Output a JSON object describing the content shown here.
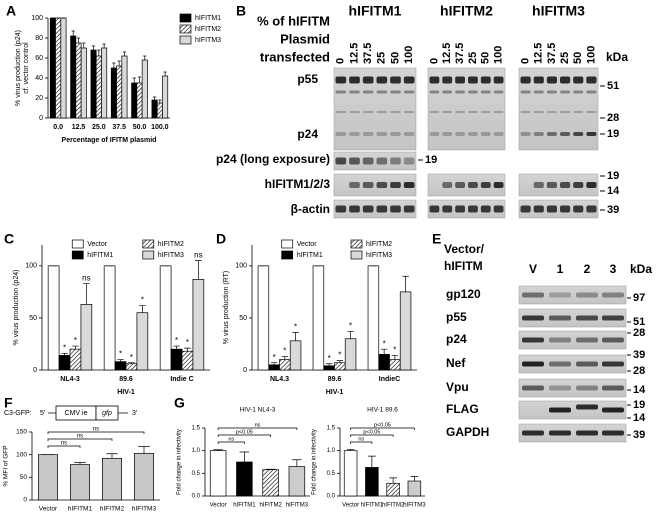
{
  "panel_labels": [
    "A",
    "B",
    "C",
    "D",
    "E",
    "F",
    "G"
  ],
  "chart_data": [
    {
      "type": "bar",
      "ylabel": [
        "% virus production (p24)",
        "cf. vector control"
      ],
      "xlabel": "Percentage of IFITM plasmid",
      "categories": [
        "0.0",
        "12.5",
        "25.0",
        "37.5",
        "50.0",
        "100.0"
      ],
      "ylim": [
        0,
        100
      ],
      "yticks": [
        0,
        20,
        40,
        60,
        80,
        100
      ],
      "legend": "upper right",
      "series": [
        {
          "name": "hIFITM1",
          "color": "#000000",
          "values": [
            100,
            82,
            68,
            50,
            35,
            18
          ],
          "errors": [
            0,
            5,
            4,
            5,
            5,
            3
          ]
        },
        {
          "name": "hIFITM2",
          "color": "#ffffff",
          "hatch": true,
          "values": [
            100,
            75,
            62,
            52,
            35,
            15
          ],
          "errors": [
            0,
            5,
            6,
            5,
            6,
            3
          ]
        },
        {
          "name": "hIFITM3",
          "color": "#d9d9d9",
          "values": [
            100,
            70,
            70,
            62,
            58,
            42
          ],
          "errors": [
            0,
            5,
            4,
            4,
            4,
            4
          ]
        }
      ]
    },
    {
      "type": "bar",
      "ylabel": [
        "% virus production (p24)"
      ],
      "xlabel": "HIV-1",
      "categories": [
        "NL4-3",
        "89.6",
        "Indie C"
      ],
      "ylim": [
        0,
        120
      ],
      "yticks": [
        0,
        50,
        100
      ],
      "legend": "upper center",
      "series": [
        {
          "name": "Vector",
          "color": "#ffffff",
          "values": [
            100,
            100,
            100
          ],
          "errors": [
            0,
            0,
            0
          ]
        },
        {
          "name": "hIFITM1",
          "color": "#000000",
          "values": [
            14,
            8,
            20
          ],
          "errors": [
            2,
            2,
            3
          ],
          "significance": [
            "*",
            "*",
            "*"
          ]
        },
        {
          "name": "hIFITM2",
          "color": "#ffffff",
          "hatch": true,
          "values": [
            20,
            6,
            18
          ],
          "errors": [
            3,
            1,
            3
          ],
          "significance": [
            "*",
            "*",
            "*"
          ]
        },
        {
          "name": "hIFITM3",
          "color": "#d9d9d9",
          "values": [
            63,
            55,
            87
          ],
          "errors": [
            20,
            7,
            18
          ],
          "significance": [
            "ns",
            "*",
            "ns"
          ]
        }
      ]
    },
    {
      "type": "bar",
      "ylabel": [
        "% virus production (RT)"
      ],
      "xlabel": "HIV-1",
      "categories": [
        "NL4.3",
        "89.6",
        "IndieC"
      ],
      "ylim": [
        0,
        120
      ],
      "yticks": [
        0,
        50,
        100
      ],
      "legend": "upper center",
      "series": [
        {
          "name": "Vector",
          "color": "#ffffff",
          "values": [
            100,
            100,
            100
          ],
          "errors": [
            0,
            0,
            0
          ]
        },
        {
          "name": "hIFITM1",
          "color": "#000000",
          "values": [
            5,
            4,
            15
          ],
          "errors": [
            2,
            2,
            5
          ],
          "significance": [
            "*",
            "*",
            "*"
          ]
        },
        {
          "name": "hIFITM2",
          "color": "#ffffff",
          "hatch": true,
          "values": [
            10,
            7,
            10
          ],
          "errors": [
            3,
            2,
            4
          ],
          "significance": [
            "*",
            "*",
            "*"
          ]
        },
        {
          "name": "hIFITM3",
          "color": "#d9d9d9",
          "values": [
            28,
            30,
            75
          ],
          "errors": [
            8,
            7,
            15
          ],
          "significance": [
            "*",
            "*",
            null
          ]
        }
      ]
    },
    {
      "type": "bar",
      "ylabel": [
        "% MFI of GFP"
      ],
      "categories": [
        "Vector",
        "hIFITM1",
        "hIFITM2",
        "hIFITM3"
      ],
      "values": [
        100,
        78,
        92,
        103
      ],
      "errors": [
        0,
        5,
        10,
        15
      ],
      "colors": [
        "#c8c8c8",
        "#c8c8c8",
        "#c8c8c8",
        "#c8c8c8"
      ],
      "ylim": [
        0,
        150
      ],
      "yticks": [
        0,
        50,
        100,
        150
      ],
      "brackets": [
        {
          "label": "ns",
          "from": "Vector",
          "to": "hIFITM1"
        },
        {
          "label": "ns",
          "from": "Vector",
          "to": "hIFITM2"
        },
        {
          "label": "ns",
          "from": "Vector",
          "to": "hIFITM3"
        }
      ]
    },
    {
      "type": "bar",
      "title": "HIV-1 NL4-3",
      "ylabel": [
        "Fold change in infectivity"
      ],
      "categories": [
        "Vector",
        "hIFITM1",
        "hIFITM2",
        "hIFITM3"
      ],
      "values": [
        1.0,
        0.75,
        0.58,
        0.65
      ],
      "errors": [
        0.02,
        0.22,
        0.01,
        0.15
      ],
      "colors": [
        "#ffffff",
        "#000000",
        "#ffffff",
        "#cccccc"
      ],
      "hatched": [
        false,
        false,
        true,
        false
      ],
      "ylim": [
        0,
        1.5
      ],
      "yticks": [
        {
          "value": 0,
          "label": "0.0"
        },
        0.5,
        {
          "value": 1,
          "label": "1.0"
        },
        1.5
      ],
      "brackets": [
        {
          "label": "ns",
          "from": "Vector",
          "to": "hIFITM1"
        },
        {
          "label": "p<0.05",
          "from": "Vector",
          "to": "hIFITM2"
        },
        {
          "label": "ns",
          "from": "Vector",
          "to": "hIFITM3"
        }
      ]
    },
    {
      "type": "bar",
      "title": "HIV-1 89.6",
      "ylabel": [
        "Fold change in infectivity"
      ],
      "categories": [
        "Vector",
        "hIFITM1",
        "hIFITM2",
        "hIFITM3"
      ],
      "values": [
        1.0,
        0.63,
        0.28,
        0.33
      ],
      "errors": [
        0.03,
        0.25,
        0.12,
        0.1
      ],
      "colors": [
        "#ffffff",
        "#000000",
        "#ffffff",
        "#cccccc"
      ],
      "hatched": [
        false,
        false,
        true,
        false
      ],
      "ylim": [
        0,
        1.5
      ],
      "yticks": [
        {
          "value": 0,
          "label": "0.0"
        },
        0.5,
        {
          "value": 1,
          "label": "1.0"
        },
        1.5
      ],
      "brackets": [
        {
          "label": "ns",
          "from": "Vector",
          "to": "hIFITM1"
        },
        {
          "label": "p<0.05",
          "from": "Vector",
          "to": "hIFITM2"
        },
        {
          "label": "p<0.05",
          "from": "Vector",
          "to": "hIFITM3"
        }
      ]
    }
  ],
  "blot_b": {
    "groups": [
      "hIFITM1",
      "hIFITM2",
      "hIFITM3"
    ],
    "heading": [
      "% of hIFITM",
      "Plasmid",
      "transfected"
    ],
    "lanes": [
      0,
      12.5,
      37.5,
      25,
      50,
      100
    ],
    "unit": "kDa",
    "rows": [
      "p55",
      "p24",
      "p24 (long exposure)",
      "hIFITM1/2/3",
      "β-actin"
    ],
    "markers": [
      51,
      28,
      19,
      19,
      19,
      14,
      39
    ]
  },
  "blot_e": {
    "heading": [
      "Vector/",
      "hIFITM"
    ],
    "lanes": [
      "V",
      1,
      2,
      3
    ],
    "unit": "kDa",
    "rows": [
      "gp120",
      "p55",
      "p24",
      "Nef",
      "Vpu",
      "FLAG",
      "GAPDH"
    ],
    "markers": [
      97,
      51,
      28,
      39,
      28,
      14,
      19,
      14,
      39
    ]
  },
  "gfp_construct": {
    "label": "C3-GFP:",
    "five_prime": "5'",
    "promoter": "CMV ie",
    "gene": "gfp",
    "three_prime": "3'"
  }
}
